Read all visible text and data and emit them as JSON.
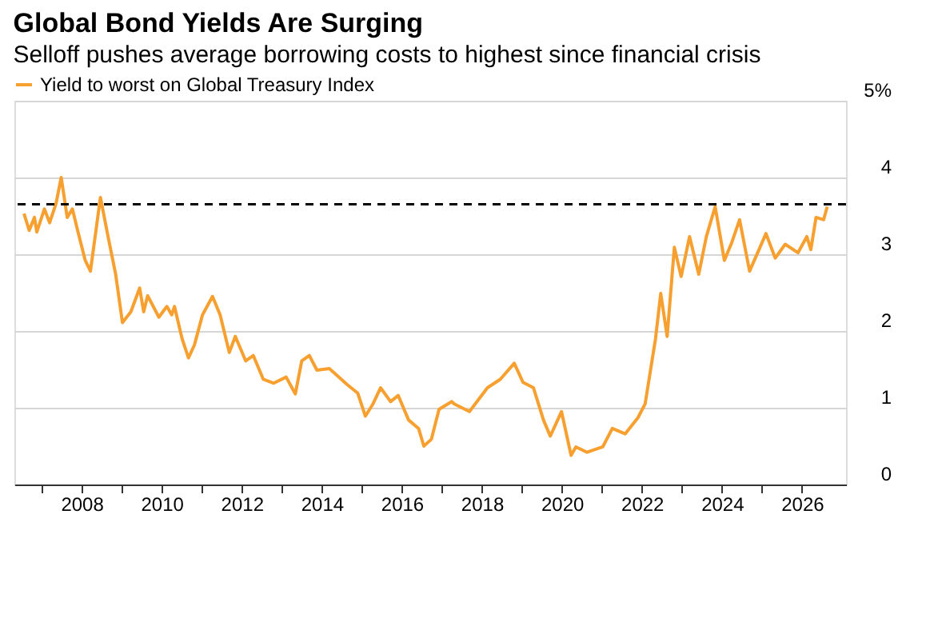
{
  "chart_data": {
    "type": "line",
    "title": "Global Bond Yields Are Surging",
    "subtitle": "Selloff pushes average borrowing costs to highest since financial crisis",
    "x": [
      2006.56,
      2006.69,
      2006.82,
      2006.88,
      2007.07,
      2007.2,
      2007.36,
      2007.49,
      2007.64,
      2007.77,
      2007.9,
      2008.09,
      2008.22,
      2008.47,
      2008.66,
      2008.85,
      2009.02,
      2009.23,
      2009.45,
      2009.55,
      2009.65,
      2009.93,
      2010.13,
      2010.25,
      2010.32,
      2010.51,
      2010.67,
      2010.82,
      2011.02,
      2011.27,
      2011.46,
      2011.69,
      2011.84,
      2012.1,
      2012.29,
      2012.54,
      2012.8,
      2013.11,
      2013.34,
      2013.5,
      2013.69,
      2013.88,
      2014.19,
      2014.64,
      2014.9,
      2015.09,
      2015.28,
      2015.47,
      2015.72,
      2015.91,
      2016.17,
      2016.42,
      2016.55,
      2016.74,
      2016.93,
      2017.25,
      2017.31,
      2017.69,
      2018.14,
      2018.46,
      2018.81,
      2019.03,
      2019.29,
      2019.54,
      2019.71,
      2019.99,
      2020.23,
      2020.35,
      2020.63,
      2021.02,
      2021.26,
      2021.58,
      2021.9,
      2022.08,
      2022.34,
      2022.47,
      2022.63,
      2022.81,
      2022.98,
      2023.19,
      2023.42,
      2023.61,
      2023.83,
      2024.06,
      2024.25,
      2024.44,
      2024.69,
      2024.95,
      2025.1,
      2025.33,
      2025.58,
      2025.9,
      2026.12,
      2026.22,
      2026.35,
      2026.54,
      2026.63
    ],
    "series": [
      {
        "name": "Yield to worst on Global Treasury Index",
        "color": "#f7a030",
        "values": [
          3.53,
          3.31,
          3.48,
          3.29,
          3.59,
          3.41,
          3.66,
          4.0,
          3.48,
          3.59,
          3.31,
          2.92,
          2.78,
          3.74,
          3.23,
          2.74,
          2.11,
          2.25,
          2.56,
          2.25,
          2.46,
          2.18,
          2.32,
          2.21,
          2.32,
          1.9,
          1.65,
          1.82,
          2.21,
          2.45,
          2.21,
          1.72,
          1.93,
          1.61,
          1.68,
          1.37,
          1.32,
          1.4,
          1.18,
          1.61,
          1.68,
          1.49,
          1.51,
          1.3,
          1.19,
          0.89,
          1.05,
          1.26,
          1.08,
          1.16,
          0.84,
          0.73,
          0.5,
          0.59,
          0.98,
          1.08,
          1.05,
          0.95,
          1.26,
          1.37,
          1.58,
          1.33,
          1.26,
          0.84,
          0.63,
          0.95,
          0.38,
          0.49,
          0.42,
          0.49,
          0.73,
          0.66,
          0.87,
          1.05,
          1.9,
          2.49,
          1.93,
          3.09,
          2.71,
          3.23,
          2.74,
          3.23,
          3.62,
          2.92,
          3.16,
          3.45,
          2.78,
          3.09,
          3.27,
          2.95,
          3.13,
          3.02,
          3.23,
          3.06,
          3.48,
          3.45,
          3.62
        ]
      }
    ],
    "xlim": [
      2006.32,
      2027.1
    ],
    "xticks": [
      {
        "value": 2007,
        "label": null
      },
      {
        "value": 2008,
        "label": "2008"
      },
      {
        "value": 2009,
        "label": null
      },
      {
        "value": 2010,
        "label": "2010"
      },
      {
        "value": 2011,
        "label": null
      },
      {
        "value": 2012,
        "label": "2012"
      },
      {
        "value": 2013,
        "label": null
      },
      {
        "value": 2014,
        "label": "2014"
      },
      {
        "value": 2015,
        "label": null
      },
      {
        "value": 2016,
        "label": "2016"
      },
      {
        "value": 2017,
        "label": null
      },
      {
        "value": 2018,
        "label": "2018"
      },
      {
        "value": 2019,
        "label": null
      },
      {
        "value": 2020,
        "label": "2020"
      },
      {
        "value": 2021,
        "label": null
      },
      {
        "value": 2022,
        "label": "2022"
      },
      {
        "value": 2023,
        "label": null
      },
      {
        "value": 2024,
        "label": "2024"
      },
      {
        "value": 2025,
        "label": null
      },
      {
        "value": 2026,
        "label": "2026"
      }
    ],
    "ylim": [
      0,
      5
    ],
    "yticks": [
      0,
      1,
      2,
      3,
      4,
      {
        "value": 5,
        "label": "5%"
      }
    ],
    "ref_lines": [
      {
        "axis": "y",
        "value": 3.65,
        "color": "#000000",
        "line_style": "dashed"
      }
    ],
    "grid": "y",
    "legend": "top left",
    "line_style": "solid",
    "marker": "none"
  }
}
